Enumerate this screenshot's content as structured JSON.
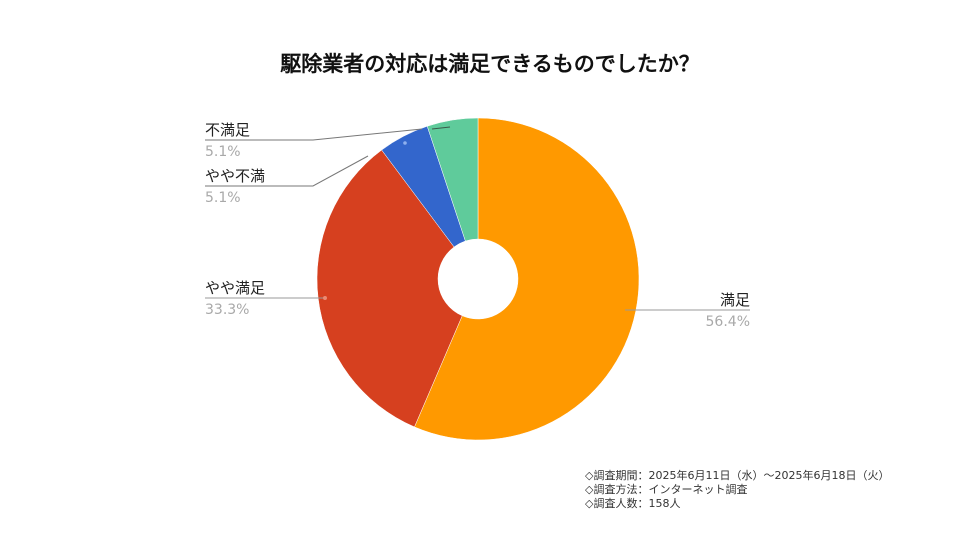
{
  "title": "駆除業者の対応は満足できるものでしたか？",
  "chart_data": {
    "type": "pie",
    "donut": true,
    "title": "駆除業者の対応は満足できるものでしたか？",
    "categories": [
      "満足",
      "やや満足",
      "やや不満",
      "不満足"
    ],
    "values": [
      56.4,
      33.3,
      5.1,
      5.1
    ],
    "unit": "%",
    "colors": [
      "#FF9900",
      "#D6401F",
      "#3366CC",
      "#5FCB9B"
    ],
    "start_angle_deg": 0,
    "direction": "clockwise",
    "labels": [
      {
        "name": "満足",
        "percent": "56.4%"
      },
      {
        "name": "やや満足",
        "percent": "33.3%"
      },
      {
        "name": "やや不満",
        "percent": "5.1%"
      },
      {
        "name": "不満足",
        "percent": "5.1%"
      }
    ]
  },
  "labels": {
    "satisfied": {
      "name": "満足",
      "percent": "56.4%"
    },
    "somewhat_satisfied": {
      "name": "やや満足",
      "percent": "33.3%"
    },
    "somewhat_dissatisfied": {
      "name": "やや不満",
      "percent": "5.1%"
    },
    "dissatisfied": {
      "name": "不満足",
      "percent": "5.1%"
    }
  },
  "footnote": {
    "period": "◇調査期間：2025年6月11日（水）～2025年6月18日（火）",
    "method": "◇調査方法：インターネット調査",
    "count": "◇調査人数：158人"
  }
}
